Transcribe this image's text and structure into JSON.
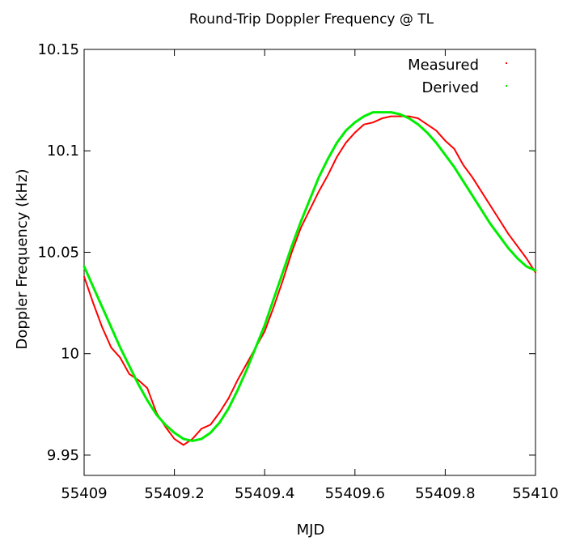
{
  "chart_data": {
    "type": "line",
    "title": "Round-Trip Doppler Frequency @ TL",
    "xlabel": "MJD",
    "ylabel": "Doppler Frequency (kHz)",
    "xlim": [
      55409,
      55410
    ],
    "ylim": [
      9.94,
      10.15
    ],
    "xticks": [
      55409,
      55409.2,
      55409.4,
      55409.6,
      55409.8,
      55410
    ],
    "xtick_labels": [
      "55409",
      "55409.2",
      "55409.4",
      "55409.6",
      "55409.8",
      "55410"
    ],
    "yticks": [
      9.95,
      10,
      10.05,
      10.1,
      10.15
    ],
    "ytick_labels": [
      "9.95",
      "10",
      "10.05",
      "10.1",
      "10.15"
    ],
    "grid": false,
    "legend": "top-right",
    "colors": {
      "measured": "#ff0000",
      "derived": "#00ee00"
    },
    "series": [
      {
        "name": "Measured",
        "x": [
          55409,
          55409.02,
          55409.04,
          55409.06,
          55409.08,
          55409.1,
          55409.12,
          55409.14,
          55409.16,
          55409.18,
          55409.2,
          55409.22,
          55409.24,
          55409.26,
          55409.28,
          55409.3,
          55409.32,
          55409.34,
          55409.36,
          55409.38,
          55409.4,
          55409.42,
          55409.44,
          55409.46,
          55409.48,
          55409.5,
          55409.52,
          55409.54,
          55409.56,
          55409.58,
          55409.6,
          55409.62,
          55409.64,
          55409.66,
          55409.68,
          55409.7,
          55409.72,
          55409.74,
          55409.76,
          55409.78,
          55409.8,
          55409.82,
          55409.84,
          55409.86,
          55409.88,
          55409.9,
          55409.92,
          55409.94,
          55409.96,
          55409.98,
          55410
        ],
        "values": [
          10.038,
          10.025,
          10.013,
          10.003,
          9.998,
          9.99,
          9.987,
          9.983,
          9.971,
          9.964,
          9.958,
          9.955,
          9.958,
          9.963,
          9.965,
          9.971,
          9.978,
          9.987,
          9.995,
          10.003,
          10.011,
          10.023,
          10.036,
          10.05,
          10.062,
          10.071,
          10.08,
          10.088,
          10.097,
          10.104,
          10.109,
          10.113,
          10.114,
          10.116,
          10.117,
          10.117,
          10.117,
          10.116,
          10.113,
          10.11,
          10.105,
          10.101,
          10.093,
          10.087,
          10.08,
          10.073,
          10.066,
          10.059,
          10.053,
          10.047,
          10.04
        ]
      },
      {
        "name": "Derived",
        "x": [
          55409,
          55409.02,
          55409.04,
          55409.06,
          55409.08,
          55409.1,
          55409.12,
          55409.14,
          55409.16,
          55409.18,
          55409.2,
          55409.22,
          55409.24,
          55409.26,
          55409.28,
          55409.3,
          55409.32,
          55409.34,
          55409.36,
          55409.38,
          55409.4,
          55409.42,
          55409.44,
          55409.46,
          55409.48,
          55409.5,
          55409.52,
          55409.54,
          55409.56,
          55409.58,
          55409.6,
          55409.62,
          55409.64,
          55409.66,
          55409.68,
          55409.7,
          55409.72,
          55409.74,
          55409.76,
          55409.78,
          55409.8,
          55409.82,
          55409.84,
          55409.86,
          55409.88,
          55409.9,
          55409.92,
          55409.94,
          55409.96,
          55409.98,
          55410
        ],
        "values": [
          10.043,
          10.033,
          10.023,
          10.013,
          10.003,
          9.994,
          9.985,
          9.977,
          9.97,
          9.965,
          9.961,
          9.958,
          9.957,
          9.958,
          9.961,
          9.966,
          9.973,
          9.982,
          9.992,
          10.003,
          10.014,
          10.027,
          10.04,
          10.053,
          10.065,
          10.076,
          10.087,
          10.096,
          10.104,
          10.11,
          10.114,
          10.117,
          10.119,
          10.119,
          10.119,
          10.118,
          10.116,
          10.113,
          10.109,
          10.104,
          10.098,
          10.092,
          10.085,
          10.078,
          10.071,
          10.064,
          10.058,
          10.052,
          10.047,
          10.043,
          10.041
        ]
      }
    ]
  }
}
